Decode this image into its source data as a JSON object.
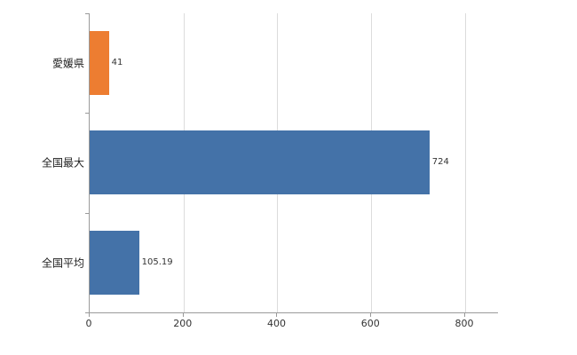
{
  "chart_data": {
    "type": "bar",
    "orientation": "horizontal",
    "title": "",
    "xlabel": "",
    "ylabel": "",
    "grid": true,
    "legend": "none",
    "categories": [
      "愛媛県",
      "全国最大",
      "全国平均"
    ],
    "values": [
      41,
      724,
      105.19
    ],
    "value_labels": [
      "41",
      "724",
      "105.19"
    ],
    "bar_colors": [
      "#ED7D31",
      "#4472A8",
      "#4472A8"
    ],
    "axis_max": 870,
    "ticks": [
      0,
      200,
      400,
      600,
      800
    ],
    "tick_labels": [
      "0",
      "200",
      "400",
      "600",
      "800"
    ],
    "gridline_color": "#dcdcdc",
    "axis_color": "#9a9a9a"
  }
}
